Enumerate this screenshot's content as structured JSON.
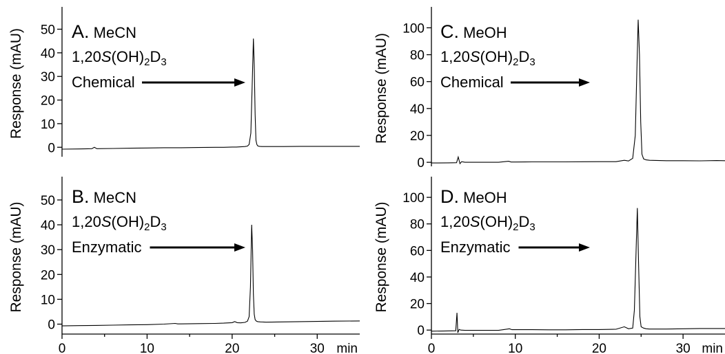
{
  "chart_data": [
    {
      "panel": "A",
      "type": "line",
      "letter": "A.",
      "solvent": "MeCN",
      "compound": {
        "base": "1,20",
        "italic": "S",
        "mid": "(OH)",
        "sub1": "2",
        "d": "D",
        "sub2": "3"
      },
      "method": "Chemical",
      "ylabel": "Response (mAU)",
      "xlim": [
        0,
        35
      ],
      "ylim": [
        -4,
        58
      ],
      "yticks": [
        0,
        10,
        20,
        30,
        40,
        50
      ],
      "xticks": [],
      "xunit": "",
      "x": [
        0,
        2,
        3.5,
        3.8,
        4.1,
        6,
        8,
        10,
        12,
        14,
        16,
        18,
        19,
        20,
        20.5,
        21,
        21.5,
        21.8,
        22.0,
        22.2,
        22.35,
        22.5,
        22.6,
        22.7,
        22.8,
        22.9,
        23.0,
        23.2,
        23.5,
        24,
        26,
        28,
        30,
        32,
        35
      ],
      "y": [
        -0.8,
        -0.7,
        -0.6,
        0,
        -0.6,
        -0.5,
        -0.4,
        -0.3,
        -0.2,
        -0.2,
        -0.1,
        0,
        0,
        0.1,
        0.1,
        0.2,
        0.3,
        0.5,
        1.2,
        6,
        26,
        46,
        35,
        14,
        3,
        1.2,
        0.6,
        0.4,
        0.3,
        0.3,
        0.3,
        0.4,
        0.4,
        0.4,
        0.4
      ],
      "annotation_peak_x": 22.5
    },
    {
      "panel": "B",
      "type": "line",
      "letter": "B.",
      "solvent": "MeCN",
      "compound": {
        "base": "1,20",
        "italic": "S",
        "mid": "(OH)",
        "sub1": "2",
        "d": "D",
        "sub2": "3"
      },
      "method": "Enzymatic",
      "ylabel": "Response (mAU)",
      "xlim": [
        0,
        35
      ],
      "ylim": [
        -4,
        58
      ],
      "yticks": [
        0,
        10,
        20,
        30,
        40,
        50
      ],
      "xticks": [
        0,
        10,
        20,
        30
      ],
      "xunit": "min",
      "x": [
        0,
        2,
        4,
        6,
        8,
        10,
        12,
        13.3,
        13.6,
        14,
        16,
        18,
        19,
        20,
        20.3,
        20.6,
        21,
        21.5,
        21.8,
        22.0,
        22.15,
        22.3,
        22.4,
        22.5,
        22.6,
        22.7,
        22.85,
        23.0,
        23.3,
        24,
        26,
        28,
        30,
        32,
        35
      ],
      "y": [
        -0.7,
        -0.6,
        -0.5,
        -0.4,
        -0.3,
        -0.2,
        0,
        0.3,
        0.1,
        0.1,
        0.2,
        0.3,
        0.4,
        0.6,
        1.0,
        0.6,
        0.5,
        0.7,
        1.2,
        3,
        15,
        40,
        30,
        12,
        4,
        1.8,
        1.2,
        1.0,
        0.9,
        0.8,
        0.9,
        1.0,
        1.1,
        1.2,
        1.3
      ],
      "annotation_peak_x": 22.4
    },
    {
      "panel": "C",
      "type": "line",
      "letter": "C.",
      "solvent": "MeOH",
      "compound": {
        "base": "1,20",
        "italic": "S",
        "mid": "(OH)",
        "sub1": "2",
        "d": "D",
        "sub2": "3"
      },
      "method": "Chemical",
      "ylabel": "Response (mAU)",
      "xlim": [
        0,
        35
      ],
      "ylim": [
        -3,
        113
      ],
      "yticks": [
        0,
        20,
        40,
        60,
        80,
        100
      ],
      "xticks": [],
      "xunit": "",
      "x": [
        0,
        2,
        3.0,
        3.2,
        3.4,
        3.6,
        4,
        6,
        8,
        9.2,
        9.5,
        10,
        12,
        14,
        16,
        18,
        20,
        22,
        23,
        23.5,
        24,
        24.3,
        24.5,
        24.65,
        24.8,
        24.95,
        25.1,
        25.3,
        25.6,
        26,
        28,
        30,
        32,
        34,
        35
      ],
      "y": [
        -0.5,
        -0.4,
        -0.3,
        4,
        -1,
        0.5,
        0,
        0,
        0,
        0.8,
        0.2,
        0.2,
        0.3,
        0.3,
        0.3,
        0.4,
        0.5,
        0.5,
        1.5,
        1.0,
        3,
        20,
        70,
        106,
        80,
        30,
        6,
        2.5,
        1.8,
        1.5,
        1.2,
        1.2,
        1.1,
        1.3,
        1.2
      ],
      "annotation_peak_x": 24.65
    },
    {
      "panel": "D",
      "type": "line",
      "letter": "D.",
      "solvent": "MeOH",
      "compound": {
        "base": "1,20",
        "italic": "S",
        "mid": "(OH)",
        "sub1": "2",
        "d": "D",
        "sub2": "3"
      },
      "method": "Enzymatic",
      "ylabel": "Response (mAU)",
      "xlim": [
        0,
        35
      ],
      "ylim": [
        -3,
        113
      ],
      "yticks": [
        0,
        20,
        40,
        60,
        80,
        100
      ],
      "xticks": [
        0,
        10,
        20,
        30
      ],
      "xunit": "min",
      "x": [
        0,
        2,
        2.9,
        3.05,
        3.15,
        3.3,
        3.5,
        4,
        6,
        8,
        9.3,
        9.6,
        10,
        12,
        14,
        16,
        18,
        20,
        22,
        23,
        23.5,
        24,
        24.2,
        24.4,
        24.55,
        24.7,
        24.85,
        25.0,
        25.3,
        25.6,
        26,
        28,
        30,
        32,
        35
      ],
      "y": [
        -0.8,
        -0.6,
        -0.5,
        13,
        -2,
        0.5,
        0,
        -0.2,
        -0.2,
        -0.2,
        1.0,
        0.3,
        0.3,
        0.3,
        0.2,
        0.2,
        0.4,
        0.4,
        0.6,
        2.5,
        1.0,
        1.5,
        15,
        60,
        92,
        50,
        10,
        2.5,
        1.5,
        1.0,
        0.8,
        0.8,
        1.0,
        1.2,
        1.2
      ],
      "annotation_peak_x": 24.55
    }
  ]
}
